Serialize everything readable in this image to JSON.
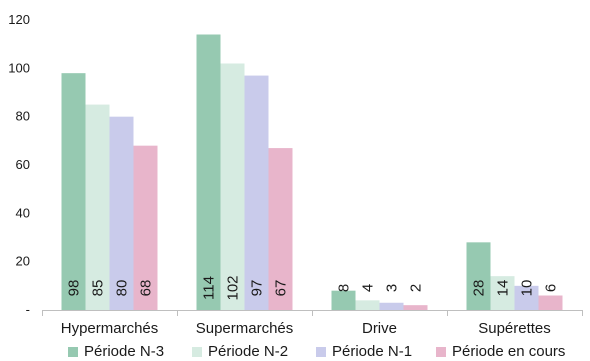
{
  "chart_data": {
    "type": "bar",
    "categories": [
      "Hypermarchés",
      "Supermarchés",
      "Drive",
      "Supérettes"
    ],
    "series": [
      {
        "name": "Période N-3",
        "color": "#96c9b1",
        "values": [
          98,
          114,
          8,
          28
        ],
        "labels": [
          "98",
          "114",
          "8",
          "28"
        ]
      },
      {
        "name": "Période N-2",
        "color": "#d6ebe1",
        "values": [
          85,
          102,
          4,
          14
        ],
        "labels": [
          "85",
          "102",
          "4",
          "14"
        ]
      },
      {
        "name": "Période N-1",
        "color": "#c9cbeb",
        "values": [
          80,
          97,
          3,
          10
        ],
        "labels": [
          "80",
          "97",
          "3",
          "10"
        ]
      },
      {
        "name": "Période en cours",
        "color": "#e8b5cb",
        "values": [
          68,
          67,
          2,
          6
        ],
        "labels": [
          "68",
          "67",
          "2",
          "6"
        ]
      }
    ],
    "ylim": [
      0,
      120
    ],
    "yticks": [
      0,
      20,
      40,
      60,
      80,
      100,
      120
    ],
    "ytick_labels": [
      "-",
      "20",
      "40",
      "60",
      "80",
      "100",
      "120"
    ],
    "title": "",
    "xlabel": "",
    "ylabel": "",
    "grid": false,
    "legend_position": "bottom"
  }
}
